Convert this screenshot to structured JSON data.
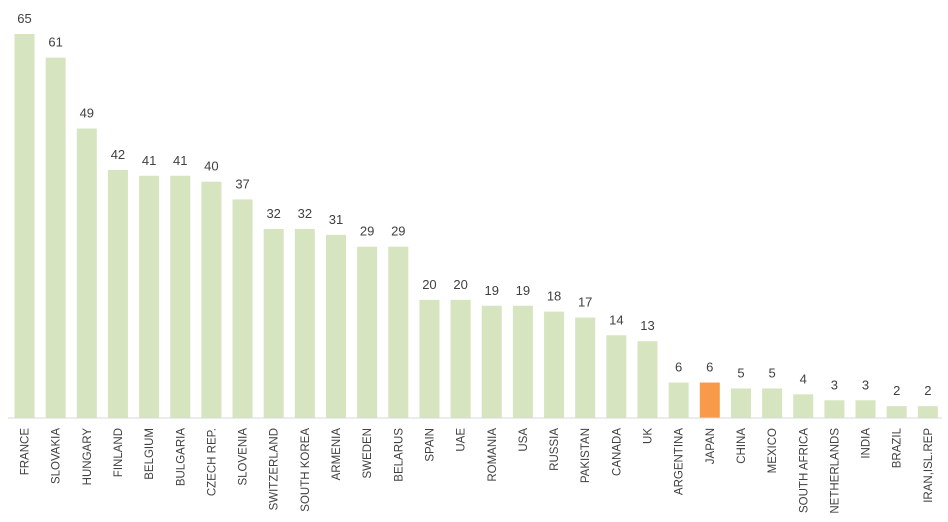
{
  "chart_data": {
    "type": "bar",
    "categories": [
      "FRANCE",
      "SLOVAKIA",
      "HUNGARY",
      "FINLAND",
      "BELGIUM",
      "BULGARIA",
      "CZECH REP.",
      "SLOVENIA",
      "SWITZERLAND",
      "SOUTH KOREA",
      "ARMENIA",
      "SWEDEN",
      "BELARUS",
      "SPAIN",
      "UAE",
      "ROMANIA",
      "USA",
      "RUSSIA",
      "PAKISTAN",
      "CANADA",
      "UK",
      "ARGENTINA",
      "JAPAN",
      "CHINA",
      "MEXICO",
      "SOUTH AFRICA",
      "NETHERLANDS",
      "INDIA",
      "BRAZIL",
      "IRAN,ISL.REP"
    ],
    "values": [
      65,
      61,
      49,
      42,
      41,
      41,
      40,
      37,
      32,
      32,
      31,
      29,
      29,
      20,
      20,
      19,
      19,
      18,
      17,
      14,
      13,
      6,
      6,
      5,
      5,
      4,
      3,
      3,
      2,
      2
    ],
    "highlight_category": "JAPAN",
    "colors": {
      "bar": "#d6e4bf",
      "highlight": "#f79a4a",
      "axis": "#d9d9d9",
      "text": "#404040"
    },
    "ylim": [
      0,
      65
    ],
    "grid": false,
    "legend": "none",
    "title": "",
    "xlabel": "",
    "ylabel": ""
  }
}
